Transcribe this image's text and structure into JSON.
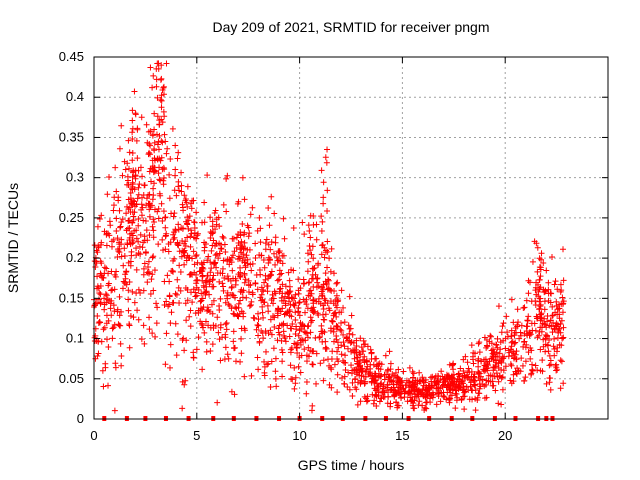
{
  "chart_data": {
    "type": "scatter",
    "title": "Day 209 of 2021, SRMTID for receiver pngm",
    "xlabel": "GPS time / hours",
    "ylabel": "SRMTID / TECUs",
    "xlim": [
      0,
      25
    ],
    "ylim": [
      0,
      0.45
    ],
    "x_ticks": [
      0,
      5,
      10,
      15,
      20
    ],
    "y_ticks": [
      0,
      0.05,
      0.1,
      0.15,
      0.2,
      0.25,
      0.3,
      0.35,
      0.4,
      0.45
    ],
    "x_tick_labels": [
      "0",
      "5",
      "10",
      "15",
      "20"
    ],
    "y_tick_labels": [
      "0",
      "0.05",
      "0.1",
      "0.15",
      "0.2",
      "0.25",
      "0.3",
      "0.35",
      "0.4",
      "0.45"
    ],
    "grid": true,
    "marker": "+",
    "series": [
      {
        "name": "SRMTID",
        "color": "#ff0000",
        "envelope": [
          {
            "x": 0.0,
            "y": 0.145
          },
          {
            "x": 0.5,
            "y": 0.16
          },
          {
            "x": 1.0,
            "y": 0.18
          },
          {
            "x": 1.5,
            "y": 0.2
          },
          {
            "x": 2.0,
            "y": 0.23
          },
          {
            "x": 2.5,
            "y": 0.25
          },
          {
            "x": 3.0,
            "y": 0.28
          },
          {
            "x": 3.3,
            "y": 0.3
          },
          {
            "x": 3.7,
            "y": 0.22
          },
          {
            "x": 4.2,
            "y": 0.2
          },
          {
            "x": 5.0,
            "y": 0.17
          },
          {
            "x": 6.0,
            "y": 0.17
          },
          {
            "x": 7.0,
            "y": 0.17
          },
          {
            "x": 8.0,
            "y": 0.15
          },
          {
            "x": 9.0,
            "y": 0.15
          },
          {
            "x": 10.0,
            "y": 0.12
          },
          {
            "x": 11.0,
            "y": 0.14
          },
          {
            "x": 12.0,
            "y": 0.11
          },
          {
            "x": 13.0,
            "y": 0.06
          },
          {
            "x": 14.0,
            "y": 0.045
          },
          {
            "x": 15.0,
            "y": 0.04
          },
          {
            "x": 16.0,
            "y": 0.035
          },
          {
            "x": 17.0,
            "y": 0.04
          },
          {
            "x": 18.0,
            "y": 0.045
          },
          {
            "x": 19.0,
            "y": 0.06
          },
          {
            "x": 20.0,
            "y": 0.08
          },
          {
            "x": 21.0,
            "y": 0.1
          },
          {
            "x": 22.0,
            "y": 0.13
          },
          {
            "x": 22.8,
            "y": 0.12
          }
        ],
        "peaks": [
          {
            "x": 2.0,
            "y": 0.385
          },
          {
            "x": 3.2,
            "y": 0.44
          },
          {
            "x": 11.2,
            "y": 0.337
          },
          {
            "x": 1.7,
            "y": 0.31
          },
          {
            "x": 2.8,
            "y": 0.36
          },
          {
            "x": 4.4,
            "y": 0.29
          },
          {
            "x": 10.5,
            "y": 0.255
          },
          {
            "x": 21.6,
            "y": 0.22
          },
          {
            "x": 5.8,
            "y": 0.255
          },
          {
            "x": 7.2,
            "y": 0.24
          }
        ],
        "zero_points_x": [
          0.5,
          1.6,
          2.5,
          3.5,
          4.6,
          5.8,
          6.8,
          7.9,
          9.0,
          10.0,
          11.1,
          12.1,
          13.2,
          14.2,
          15.3,
          16.3,
          17.4,
          18.4,
          19.5,
          20.5,
          21.6,
          22.0,
          22.3
        ]
      }
    ]
  }
}
